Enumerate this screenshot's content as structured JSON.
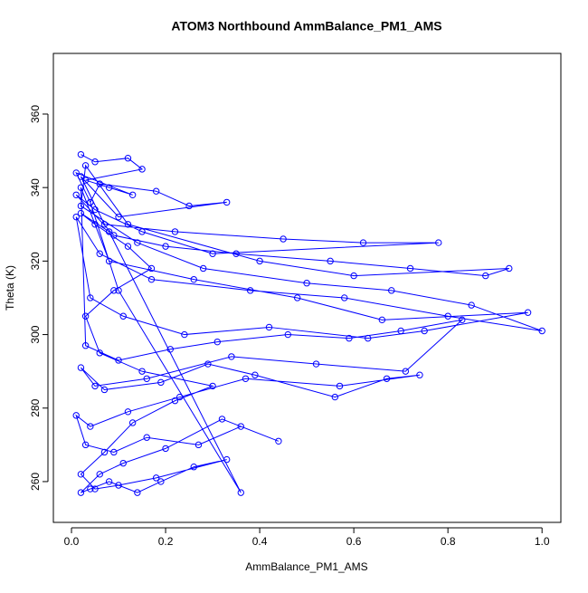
{
  "chart_data": {
    "type": "line",
    "markers": true,
    "title": "ATOM3 Northbound AmmBalance_PM1_AMS",
    "x_label": "AmmBalance_PM1_AMS",
    "y_label": "Theta (K)",
    "color": "#0000ff",
    "xlim": [
      -0.0385,
      1.04
    ],
    "ylim": [
      248.9,
      376.5
    ],
    "xticks": [
      {
        "value": 0,
        "label": "0.0"
      },
      0.2,
      0.4,
      0.6,
      0.8,
      {
        "value": 1,
        "label": "1.0"
      }
    ],
    "yticks": [
      260,
      280,
      300,
      320,
      340,
      360
    ],
    "x": [
      0.02,
      0.05,
      0.12,
      0.15,
      0.03,
      0.08,
      0.13,
      0.01,
      0.04,
      0.06,
      0.18,
      0.25,
      0.33,
      0.1,
      0.02,
      0.07,
      0.22,
      0.45,
      0.62,
      0.78,
      0.3,
      0.15,
      0.05,
      0.01,
      0.09,
      0.2,
      0.35,
      0.55,
      0.72,
      0.88,
      0.93,
      0.6,
      0.4,
      0.12,
      0.03,
      0.02,
      0.14,
      0.28,
      0.5,
      0.68,
      0.85,
      1.0,
      0.8,
      0.58,
      0.38,
      0.17,
      0.06,
      0.01,
      0.04,
      0.11,
      0.24,
      0.42,
      0.63,
      0.75,
      0.97,
      0.66,
      0.48,
      0.26,
      0.08,
      0.02,
      0.03,
      0.1,
      0.21,
      0.31,
      0.46,
      0.59,
      0.7,
      0.83,
      0.71,
      0.52,
      0.34,
      0.16,
      0.05,
      0.02,
      0.07,
      0.19,
      0.29,
      0.39,
      0.56,
      0.67,
      0.74,
      0.57,
      0.37,
      0.23,
      0.12,
      0.04,
      0.01,
      0.03,
      0.09,
      0.16,
      0.27,
      0.36,
      0.44,
      0.32,
      0.2,
      0.11,
      0.06,
      0.02,
      0.04,
      0.08,
      0.14,
      0.19,
      0.26,
      0.33,
      0.18,
      0.1,
      0.05,
      0.02,
      0.07,
      0.13,
      0.22,
      0.3,
      0.15,
      0.06,
      0.03,
      0.09,
      0.17,
      0.12,
      0.05,
      0.02,
      0.08,
      0.36,
      0.1,
      0.04
    ],
    "values": [
      349,
      347,
      348,
      345,
      342,
      340,
      338,
      344,
      336,
      341,
      339,
      335,
      336,
      332,
      343,
      330,
      328,
      326,
      325,
      325,
      322,
      328,
      334,
      338,
      327,
      324,
      322,
      320,
      318,
      316,
      318,
      316,
      320,
      330,
      346,
      335,
      325,
      318,
      314,
      312,
      308,
      301,
      305,
      310,
      312,
      315,
      322,
      332,
      310,
      305,
      300,
      302,
      299,
      301,
      306,
      304,
      310,
      315,
      320,
      340,
      297,
      293,
      296,
      298,
      300,
      299,
      301,
      304,
      290,
      292,
      294,
      288,
      286,
      291,
      285,
      287,
      292,
      289,
      283,
      288,
      289,
      286,
      288,
      283,
      279,
      275,
      278,
      270,
      268,
      272,
      270,
      275,
      271,
      277,
      269,
      265,
      262,
      257,
      258,
      260,
      257,
      260,
      264,
      266,
      261,
      259,
      258,
      262,
      268,
      276,
      282,
      286,
      290,
      295,
      305,
      312,
      318,
      324,
      330,
      333,
      328,
      257,
      312,
      336
    ]
  }
}
